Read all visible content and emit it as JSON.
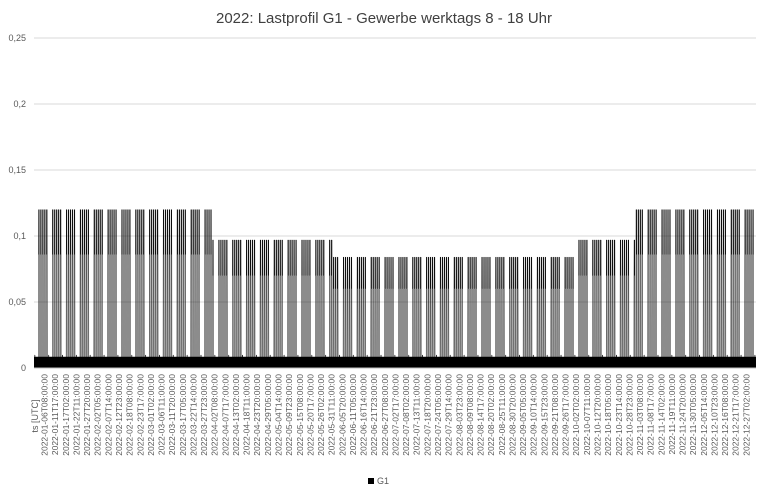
{
  "chart_data": {
    "type": "line",
    "title": "2022: Lastprofil G1 - Gewerbe werktags 8 - 18 Uhr",
    "xlabel": "ts [UTC]",
    "ylabel": "",
    "ylim": [
      0,
      0.25
    ],
    "yticks": [
      0,
      0.05,
      0.1,
      0.15,
      0.2,
      0.25
    ],
    "ytick_labels": [
      "0",
      "0,05",
      "0,1",
      "0,15",
      "0,2",
      "0,25"
    ],
    "grid": true,
    "legend_position": "bottom",
    "x_tick_labels": [
      "2022-01-06T08:00:00",
      "2022-01-11T17:00:00",
      "2022-01-17T02:00:00",
      "2022-01-22T11:00:00",
      "2022-01-27T20:00:00",
      "2022-02-02T05:00:00",
      "2022-02-07T14:00:00",
      "2022-02-12T23:00:00",
      "2022-02-18T08:00:00",
      "2022-02-23T17:00:00",
      "2022-03-01T02:00:00",
      "2022-03-06T11:00:00",
      "2022-03-11T20:00:00",
      "2022-03-17T05:00:00",
      "2022-03-22T14:00:00",
      "2022-03-27T23:00:00",
      "2022-04-02T08:00:00",
      "2022-04-07T17:00:00",
      "2022-04-13T02:00:00",
      "2022-04-18T11:00:00",
      "2022-04-23T20:00:00",
      "2022-04-29T05:00:00",
      "2022-05-04T14:00:00",
      "2022-05-09T23:00:00",
      "2022-05-15T08:00:00",
      "2022-05-20T17:00:00",
      "2022-05-26T02:00:00",
      "2022-05-31T11:00:00",
      "2022-06-05T20:00:00",
      "2022-06-11T05:00:00",
      "2022-06-16T14:00:00",
      "2022-06-21T23:00:00",
      "2022-06-27T08:00:00",
      "2022-07-02T17:00:00",
      "2022-07-08T02:00:00",
      "2022-07-13T11:00:00",
      "2022-07-18T20:00:00",
      "2022-07-24T05:00:00",
      "2022-07-29T14:00:00",
      "2022-08-03T23:00:00",
      "2022-08-09T08:00:00",
      "2022-08-14T17:00:00",
      "2022-08-20T02:00:00",
      "2022-08-25T11:00:00",
      "2022-08-30T20:00:00",
      "2022-09-05T05:00:00",
      "2022-09-10T14:00:00",
      "2022-09-15T23:00:00",
      "2022-09-21T08:00:00",
      "2022-09-26T17:00:00",
      "2022-10-02T02:00:00",
      "2022-10-07T11:00:00",
      "2022-10-12T20:00:00",
      "2022-10-18T05:00:00",
      "2022-10-23T14:00:00",
      "2022-10-28T23:00:00",
      "2022-11-03T08:00:00",
      "2022-11-08T17:00:00",
      "2022-11-14T02:00:00",
      "2022-11-19T11:00:00",
      "2022-11-24T20:00:00",
      "2022-11-30T05:00:00",
      "2022-12-05T14:00:00",
      "2022-12-10T23:00:00",
      "2022-12-16T08:00:00",
      "2022-12-21T17:00:00",
      "2022-12-27T02:00:00"
    ],
    "series": [
      {
        "name": "G1",
        "color": "#000000",
        "x_start": "2022-01-01T00:00:00",
        "x_end": "2022-12-31T23:00:00",
        "base_load": 0.007,
        "workday_peak_by_month": [
          {
            "month": "2022-01",
            "peak": 0.12
          },
          {
            "month": "2022-02",
            "peak": 0.12
          },
          {
            "month": "2022-03",
            "peak": 0.12
          },
          {
            "month": "2022-04",
            "peak": 0.097
          },
          {
            "month": "2022-05",
            "peak": 0.097
          },
          {
            "month": "2022-06",
            "peak": 0.084
          },
          {
            "month": "2022-07",
            "peak": 0.084
          },
          {
            "month": "2022-08",
            "peak": 0.084
          },
          {
            "month": "2022-09",
            "peak": 0.084
          },
          {
            "month": "2022-10",
            "peak": 0.097
          },
          {
            "month": "2022-11",
            "peak": 0.12
          },
          {
            "month": "2022-12",
            "peak": 0.12
          }
        ],
        "sub_peak_by_month": [
          {
            "month": "2022-01",
            "value": 0.086
          },
          {
            "month": "2022-02",
            "value": 0.086
          },
          {
            "month": "2022-03",
            "value": 0.086
          },
          {
            "month": "2022-04",
            "value": 0.07
          },
          {
            "month": "2022-05",
            "value": 0.07
          },
          {
            "month": "2022-06",
            "value": 0.06
          },
          {
            "month": "2022-07",
            "value": 0.06
          },
          {
            "month": "2022-08",
            "value": 0.06
          },
          {
            "month": "2022-09",
            "value": 0.06
          },
          {
            "month": "2022-10",
            "value": 0.07
          },
          {
            "month": "2022-11",
            "value": 0.086
          },
          {
            "month": "2022-12",
            "value": 0.086
          }
        ]
      }
    ]
  }
}
